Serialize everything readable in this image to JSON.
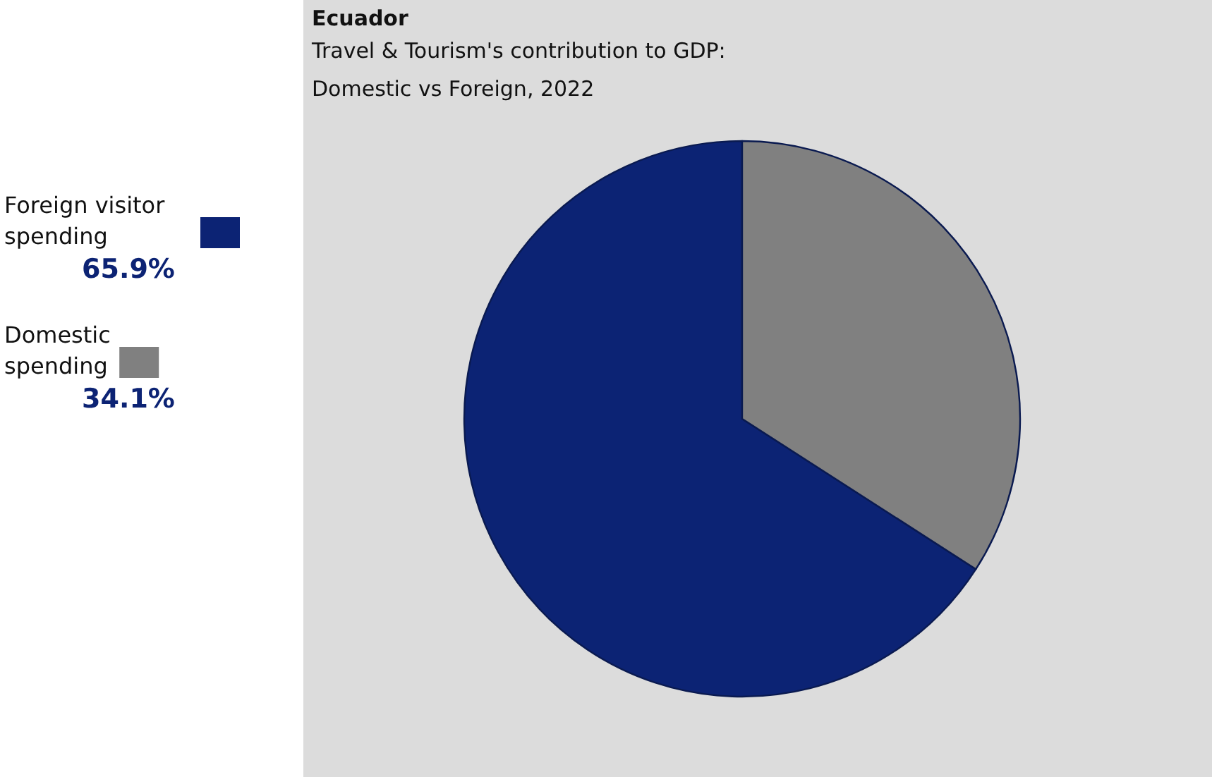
{
  "chart_data": {
    "type": "pie",
    "title": "Ecuador",
    "subtitle": "Travel & Tourism's contribution to GDP:\nDomestic vs Foreign, 2022",
    "categories": [
      "Foreign visitor spending",
      "Domestic spending"
    ],
    "values": [
      65.9,
      34.1
    ],
    "colors": [
      "#0c2374",
      "#808080"
    ],
    "value_labels": [
      "65.9%",
      "34.1%"
    ],
    "legend": "left"
  }
}
